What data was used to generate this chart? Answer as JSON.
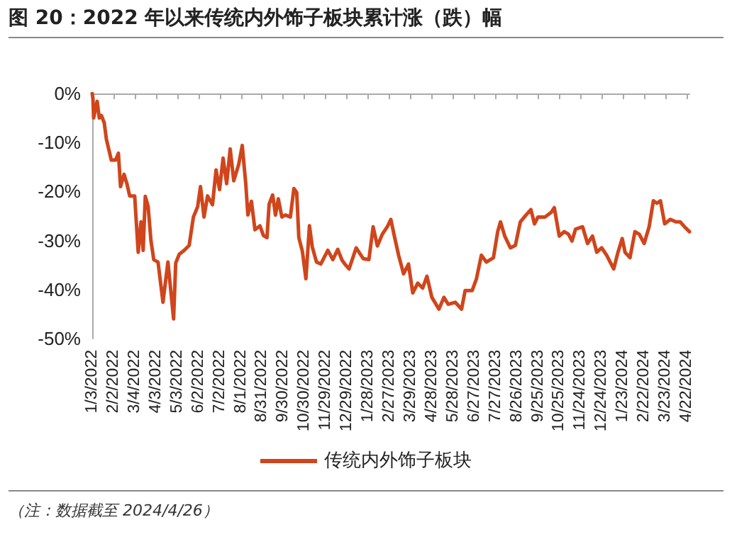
{
  "chart_data": {
    "type": "line",
    "title": "图 20：2022 年以来传统内外饰子板块累计涨（跌）幅",
    "annotations": [
      "（注：数据截至 2024/4/26）"
    ],
    "series": [
      {
        "name": "传统内外饰子板块",
        "color": "#d0451b",
        "x": [
          "2022-01-03",
          "2022-01-04",
          "2022-01-05",
          "2022-01-10",
          "2022-01-13",
          "2022-01-16",
          "2022-01-20",
          "2022-01-23",
          "2022-01-30",
          "2022-02-05",
          "2022-02-09",
          "2022-02-12",
          "2022-02-17",
          "2022-02-21",
          "2022-02-25",
          "2022-03-04",
          "2022-03-09",
          "2022-03-13",
          "2022-03-16",
          "2022-03-19",
          "2022-03-23",
          "2022-03-27",
          "2022-03-31",
          "2022-04-06",
          "2022-04-13",
          "2022-04-20",
          "2022-04-23",
          "2022-04-28",
          "2022-05-01",
          "2022-05-06",
          "2022-05-13",
          "2022-05-20",
          "2022-05-26",
          "2022-06-01",
          "2022-06-05",
          "2022-06-10",
          "2022-06-15",
          "2022-06-22",
          "2022-06-27",
          "2022-07-02",
          "2022-07-07",
          "2022-07-12",
          "2022-07-17",
          "2022-07-22",
          "2022-07-29",
          "2022-08-03",
          "2022-08-08",
          "2022-08-11",
          "2022-08-16",
          "2022-08-21",
          "2022-08-28",
          "2022-09-02",
          "2022-09-07",
          "2022-09-10",
          "2022-09-15",
          "2022-09-19",
          "2022-09-23",
          "2022-09-28",
          "2022-10-03",
          "2022-10-10",
          "2022-10-15",
          "2022-10-19",
          "2022-10-22",
          "2022-10-27",
          "2022-11-01",
          "2022-11-06",
          "2022-11-10",
          "2022-11-16",
          "2022-11-22",
          "2022-12-02",
          "2022-12-09",
          "2022-12-16",
          "2022-12-22",
          "2022-12-26",
          "2023-01-01",
          "2023-01-11",
          "2023-01-21",
          "2023-01-29",
          "2023-02-04",
          "2023-02-10",
          "2023-02-17",
          "2023-02-24",
          "2023-03-01",
          "2023-03-06",
          "2023-03-12",
          "2023-03-19",
          "2023-03-26",
          "2023-04-01",
          "2023-04-08",
          "2023-04-15",
          "2023-04-21",
          "2023-04-28",
          "2023-05-08",
          "2023-05-15",
          "2023-05-21",
          "2023-05-31",
          "2023-06-09",
          "2023-06-14",
          "2023-06-24",
          "2023-06-30",
          "2023-07-07",
          "2023-07-14",
          "2023-07-24",
          "2023-07-30",
          "2023-08-03",
          "2023-08-09",
          "2023-08-17",
          "2023-08-24",
          "2023-08-31",
          "2023-09-08",
          "2023-09-15",
          "2023-09-20",
          "2023-09-25",
          "2023-10-05",
          "2023-10-14",
          "2023-10-18",
          "2023-10-25",
          "2023-11-01",
          "2023-11-07",
          "2023-11-12",
          "2023-11-17",
          "2023-11-27",
          "2023-12-04",
          "2023-12-11",
          "2023-12-17",
          "2023-12-24",
          "2023-12-31",
          "2024-01-10",
          "2024-01-16",
          "2024-01-22",
          "2024-01-26",
          "2024-02-02",
          "2024-02-09",
          "2024-02-15",
          "2024-02-22",
          "2024-02-29",
          "2024-03-06",
          "2024-03-11",
          "2024-03-16",
          "2024-03-22",
          "2024-03-30",
          "2024-04-07",
          "2024-04-13",
          "2024-04-19",
          "2024-04-26"
        ],
        "values": [
          0,
          -1,
          -5,
          -1.6,
          -5,
          -4.5,
          -6,
          -9.3,
          -13.6,
          -13.6,
          -12.2,
          -19,
          -16.5,
          -18.4,
          -20.9,
          -20.9,
          -32.4,
          -26.2,
          -32,
          -21,
          -23,
          -30,
          -33.9,
          -34.4,
          -42.6,
          -34.4,
          -38.7,
          -46,
          -34.6,
          -32.8,
          -32,
          -31,
          -25.2,
          -23.1,
          -19,
          -25.2,
          -20.9,
          -22.7,
          -15.6,
          -19.6,
          -13.2,
          -18.4,
          -11.3,
          -17.8,
          -14.5,
          -10.6,
          -18.4,
          -24.8,
          -22,
          -27.8,
          -27,
          -29,
          -29.4,
          -22.6,
          -20.7,
          -24.8,
          -21.5,
          -25.2,
          -24.8,
          -25.2,
          -19.4,
          -20.2,
          -29.4,
          -32.2,
          -37.8,
          -27,
          -31.3,
          -34.4,
          -34.8,
          -32,
          -33.9,
          -31.8,
          -34,
          -34.8,
          -35.8,
          -31.5,
          -33.7,
          -33.9,
          -27.2,
          -31.1,
          -28.7,
          -27.2,
          -25.7,
          -29.1,
          -33,
          -36.8,
          -34.8,
          -40.7,
          -38.7,
          -39.7,
          -37.3,
          -41.6,
          -44,
          -41.6,
          -43,
          -42.6,
          -44,
          -40.2,
          -40.2,
          -37.8,
          -33,
          -34.4,
          -33.5,
          -28.2,
          -26.2,
          -29.1,
          -31.5,
          -31,
          -26.2,
          -24.8,
          -23.7,
          -26.6,
          -25.2,
          -25.2,
          -24.2,
          -23.3,
          -29.1,
          -28.2,
          -28.7,
          -30.1,
          -27.7,
          -27.2,
          -30.6,
          -29.1,
          -32.4,
          -31.5,
          -33,
          -35.8,
          -32.4,
          -29.6,
          -32.4,
          -33.5,
          -28.2,
          -28.7,
          -30.6,
          -27.2,
          -21.9,
          -22.4,
          -21.9,
          -26.6,
          -25.7,
          -26.2,
          -26.2,
          -27.2,
          -28.2
        ]
      }
    ],
    "xlim": [
      "2022-01-03",
      "2024-04-26"
    ],
    "xticks": [
      {
        "value": "2022-01-03",
        "label": "1/3/2022"
      },
      {
        "value": "2022-02-02",
        "label": "2/2/2022"
      },
      {
        "value": "2022-03-04",
        "label": "3/4/2022"
      },
      {
        "value": "2022-04-03",
        "label": "4/3/2022"
      },
      {
        "value": "2022-05-03",
        "label": "5/3/2022"
      },
      {
        "value": "2022-06-02",
        "label": "6/2/2022"
      },
      {
        "value": "2022-07-02",
        "label": "7/2/2022"
      },
      {
        "value": "2022-08-01",
        "label": "8/1/2022"
      },
      {
        "value": "2022-08-31",
        "label": "8/31/2022"
      },
      {
        "value": "2022-09-30",
        "label": "9/30/2022"
      },
      {
        "value": "2022-10-30",
        "label": "10/30/2022"
      },
      {
        "value": "2022-11-29",
        "label": "11/29/2022"
      },
      {
        "value": "2022-12-29",
        "label": "12/29/2022"
      },
      {
        "value": "2023-01-28",
        "label": "1/28/2023"
      },
      {
        "value": "2023-02-27",
        "label": "2/27/2023"
      },
      {
        "value": "2023-03-29",
        "label": "3/29/2023"
      },
      {
        "value": "2023-04-28",
        "label": "4/28/2023"
      },
      {
        "value": "2023-05-28",
        "label": "5/28/2023"
      },
      {
        "value": "2023-06-27",
        "label": "6/27/2023"
      },
      {
        "value": "2023-07-27",
        "label": "7/27/2023"
      },
      {
        "value": "2023-08-26",
        "label": "8/26/2023"
      },
      {
        "value": "2023-09-25",
        "label": "9/25/2023"
      },
      {
        "value": "2023-10-25",
        "label": "10/25/2023"
      },
      {
        "value": "2023-11-24",
        "label": "11/24/2023"
      },
      {
        "value": "2023-12-24",
        "label": "12/24/2023"
      },
      {
        "value": "2024-01-23",
        "label": "1/23/2024"
      },
      {
        "value": "2024-02-22",
        "label": "2/22/2024"
      },
      {
        "value": "2024-03-23",
        "label": "3/23/2024"
      },
      {
        "value": "2024-04-22",
        "label": "4/22/2024"
      }
    ],
    "ylim": [
      -50,
      0
    ],
    "yticks": [
      {
        "value": -50,
        "label": "-50%"
      },
      {
        "value": -40,
        "label": "-40%"
      },
      {
        "value": -30,
        "label": "-30%"
      },
      {
        "value": -20,
        "label": "-20%"
      },
      {
        "value": -10,
        "label": "-10%"
      },
      {
        "value": 0,
        "label": "0%"
      }
    ],
    "grid": false,
    "legend": "bottom",
    "marker": "none",
    "line_style": "solid"
  }
}
